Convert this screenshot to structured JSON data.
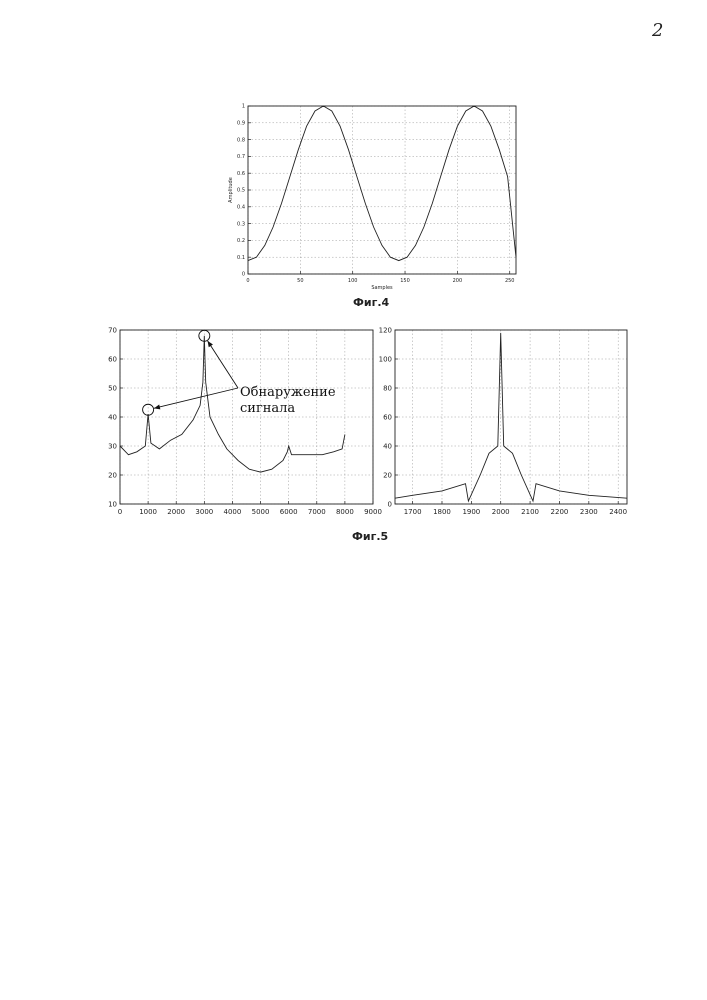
{
  "page_number": "2",
  "figures": {
    "fig4_caption": "Фиг.4",
    "fig5_caption": "Фиг.5"
  },
  "chart_data": [
    {
      "id": "fig4",
      "type": "line",
      "title": "",
      "xlabel": "Samples",
      "ylabel": "Amplitude",
      "xlim": [
        0,
        256
      ],
      "ylim": [
        0,
        1
      ],
      "xticks": [
        "0",
        "50",
        "100",
        "150",
        "200",
        "250"
      ],
      "yticks": [
        "0",
        "0.1",
        "0.2",
        "0.3",
        "0.4",
        "0.5",
        "0.6",
        "0.7",
        "0.8",
        "0.9",
        "1"
      ],
      "grid": true,
      "x": [
        0,
        8,
        16,
        24,
        32,
        40,
        48,
        56,
        64,
        72,
        80,
        88,
        96,
        104,
        112,
        120,
        128,
        136,
        144,
        152,
        160,
        168,
        176,
        184,
        192,
        200,
        208,
        216,
        224,
        232,
        240,
        248,
        256
      ],
      "y": [
        0.08,
        0.1,
        0.17,
        0.28,
        0.42,
        0.58,
        0.74,
        0.88,
        0.97,
        1.0,
        0.97,
        0.88,
        0.74,
        0.58,
        0.42,
        0.28,
        0.17,
        0.1,
        0.08,
        0.1,
        0.17,
        0.28,
        0.42,
        0.58,
        0.74,
        0.88,
        0.97,
        1.0,
        0.97,
        0.88,
        0.74,
        0.58,
        0.1
      ]
    },
    {
      "id": "fig5_left",
      "type": "line",
      "title": "",
      "xlabel": "",
      "ylabel": "",
      "xlim": [
        0,
        9000
      ],
      "ylim": [
        10,
        70
      ],
      "xticks": [
        "0",
        "1000",
        "2000",
        "3000",
        "4000",
        "5000",
        "6000",
        "7000",
        "8000",
        "9000"
      ],
      "yticks": [
        "10",
        "20",
        "30",
        "40",
        "50",
        "60",
        "70"
      ],
      "grid": true,
      "x": [
        0,
        300,
        600,
        900,
        1000,
        1100,
        1400,
        1800,
        2200,
        2600,
        2850,
        2950,
        3000,
        3050,
        3200,
        3500,
        3800,
        4200,
        4600,
        5000,
        5400,
        5800,
        5950,
        6000,
        6100,
        6400,
        6800,
        7200,
        7600,
        7900,
        8000
      ],
      "y": [
        30,
        27,
        28,
        30,
        41,
        31,
        29,
        32,
        34,
        39,
        44,
        52,
        68,
        52,
        40,
        34,
        29,
        25,
        22,
        21,
        22,
        25,
        28,
        30,
        27,
        27,
        27,
        27,
        28,
        29,
        34
      ],
      "annotation": {
        "text_line1": "Обнаружение",
        "text_line2": "сигнала",
        "points": [
          [
            1000,
            42.5
          ],
          [
            3000,
            68
          ]
        ]
      }
    },
    {
      "id": "fig5_right",
      "type": "line",
      "title": "",
      "xlabel": "",
      "ylabel": "",
      "xlim": [
        1640,
        2430
      ],
      "ylim": [
        0,
        120
      ],
      "xticks": [
        "1700",
        "1800",
        "1900",
        "2000",
        "2100",
        "2200",
        "2300",
        "2400"
      ],
      "yticks": [
        "0",
        "20",
        "40",
        "60",
        "80",
        "100",
        "120"
      ],
      "grid": true,
      "x": [
        1640,
        1700,
        1800,
        1880,
        1890,
        1930,
        1960,
        1990,
        2000,
        2010,
        2040,
        2070,
        2110,
        2120,
        2200,
        2300,
        2430
      ],
      "y": [
        4,
        6,
        9,
        14,
        2,
        20,
        35,
        40,
        118,
        40,
        35,
        20,
        2,
        14,
        9,
        6,
        4
      ]
    }
  ]
}
